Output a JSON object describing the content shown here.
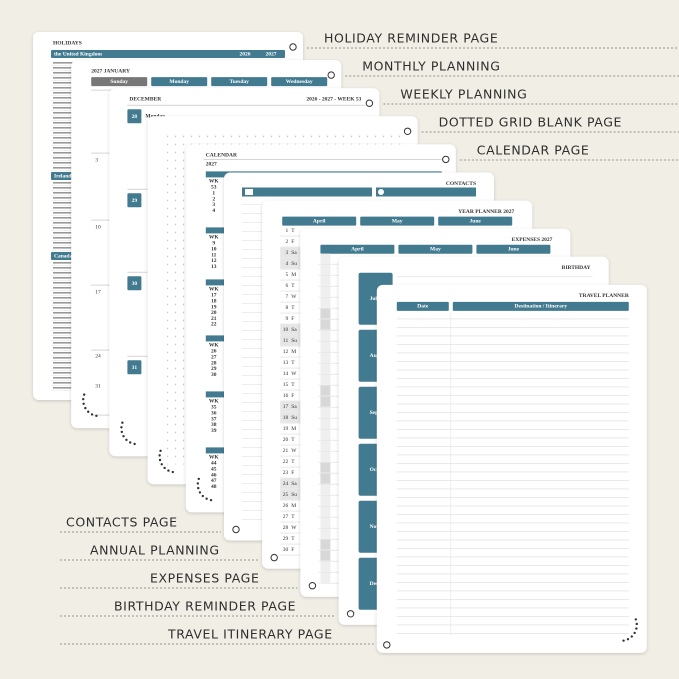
{
  "right_labels": [
    "HOLIDAY REMINDER PAGE",
    "MONTHLY PLANNING",
    "WEEKLY PLANNING",
    "DOTTED GRID BLANK PAGE",
    "CALENDAR PAGE"
  ],
  "left_labels": [
    "CONTACTS PAGE",
    "ANNUAL PLANNING",
    "EXPENSES PAGE",
    "BIRTHDAY REMINDER PAGE",
    "TRAVEL ITINERARY PAGE"
  ],
  "holidays": {
    "title": "HOLIDAYS",
    "countries": [
      "the United Kingdom",
      "Ireland",
      "Canada"
    ],
    "years": [
      "2026",
      "2027"
    ]
  },
  "monthly": {
    "title": "2027 JANUARY",
    "days": [
      "Sunday",
      "Monday",
      "Tuesday",
      "Wednesday"
    ],
    "dates": [
      3,
      10,
      17,
      24,
      31
    ]
  },
  "weekly": {
    "month": "DECEMBER",
    "week": "2026 - 2027 - WEEK 53",
    "dates": [
      28,
      29,
      30,
      31
    ],
    "day": "Monday"
  },
  "calendar": {
    "title": "CALENDAR",
    "year": "2027",
    "wk": "WK",
    "weeks": [
      [
        53,
        1,
        2,
        3,
        4
      ],
      [
        9,
        10,
        11,
        12,
        13
      ],
      [
        17,
        18,
        19,
        20,
        21,
        22
      ],
      [
        26,
        27,
        28,
        29,
        30
      ],
      [
        35,
        36,
        37,
        38,
        39
      ],
      [
        44,
        45,
        46,
        47,
        48
      ]
    ]
  },
  "contacts": {
    "title": "CONTACTS"
  },
  "year_planner": {
    "title": "YEAR PLANNER 2027",
    "months": [
      "April",
      "May",
      "June"
    ],
    "day_numbers": [
      1,
      2,
      3,
      4,
      5,
      6,
      7,
      8,
      9,
      10,
      11,
      12,
      13,
      14,
      15,
      16,
      17,
      18,
      19,
      20,
      21,
      22,
      23,
      24,
      25,
      26,
      27,
      28,
      29,
      30
    ],
    "day_letters": [
      "T",
      "F",
      "Sa",
      "Su",
      "M",
      "T",
      "W",
      "T",
      "F",
      "Sa",
      "Su",
      "M",
      "T",
      "W",
      "T",
      "F",
      "Sa",
      "Su",
      "M",
      "T",
      "W",
      "T",
      "F",
      "Sa",
      "Su",
      "M",
      "T",
      "W",
      "T",
      "F"
    ]
  },
  "expenses": {
    "title": "EXPENSES 2027",
    "months": [
      "April",
      "May",
      "June"
    ]
  },
  "birthday": {
    "title": "BIRTHDAY",
    "months": [
      "July",
      "August",
      "September",
      "October",
      "November",
      "December"
    ]
  },
  "travel": {
    "title": "TRAVEL PLANNER",
    "columns": [
      "Date",
      "Destination / Itinerary"
    ]
  }
}
